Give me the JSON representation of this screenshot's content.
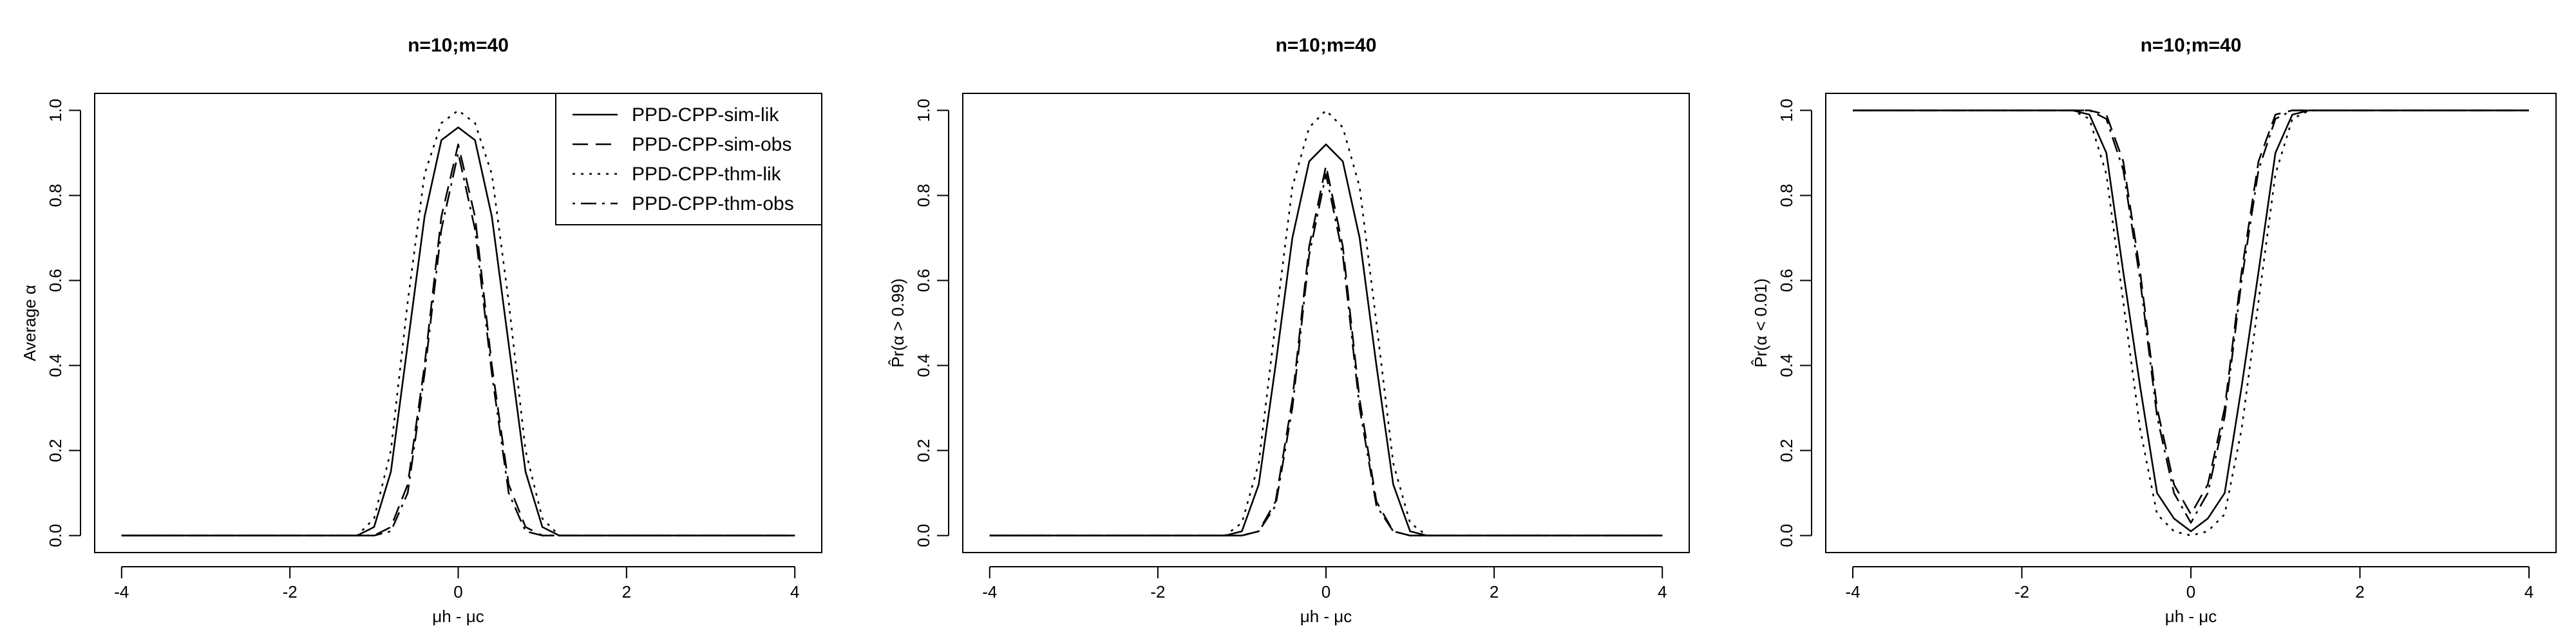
{
  "chart_data": [
    {
      "type": "line",
      "title": "n=10;m=40",
      "xlabel": "μh - μc",
      "ylabel": "Average α",
      "xlim": [
        -4.32,
        4.32
      ],
      "ylim": [
        -0.04,
        1.04
      ],
      "xticks": [
        -4,
        -2,
        0,
        2,
        4
      ],
      "yticks": [
        {
          "value": 0,
          "label": "0.0"
        },
        {
          "value": 0.2,
          "label": "0.2"
        },
        {
          "value": 0.4,
          "label": "0.4"
        },
        {
          "value": 0.6,
          "label": "0.6"
        },
        {
          "value": 0.8,
          "label": "0.8"
        },
        {
          "value": 1,
          "label": "1.0"
        }
      ],
      "legend": "topright",
      "x": [
        -4,
        -3.8,
        -3.6,
        -3.4,
        -3.2,
        -3,
        -2.8,
        -2.6,
        -2.4,
        -2.2,
        -2,
        -1.8,
        -1.6,
        -1.4,
        -1.2,
        -1,
        -0.8,
        -0.6,
        -0.4,
        -0.2,
        0,
        0.2,
        0.4,
        0.6,
        0.8,
        1,
        1.2,
        1.4,
        1.6,
        1.8,
        2,
        2.2,
        2.4,
        2.6,
        2.8,
        3,
        3.2,
        3.4,
        3.6,
        3.8,
        4
      ],
      "series": [
        {
          "name": "PPD-CPP-sim-lik",
          "color": "#000000",
          "linestyle": "solid",
          "values": [
            0,
            0,
            0,
            0,
            0,
            0,
            0,
            0,
            0,
            0,
            0,
            0,
            0,
            0,
            0,
            0.02,
            0.15,
            0.45,
            0.75,
            0.93,
            0.96,
            0.93,
            0.75,
            0.45,
            0.15,
            0.02,
            0,
            0,
            0,
            0,
            0,
            0,
            0,
            0,
            0,
            0,
            0,
            0,
            0,
            0,
            0
          ]
        },
        {
          "name": "PPD-CPP-sim-obs",
          "color": "#000000",
          "linestyle": "dashed",
          "values": [
            0,
            0,
            0,
            0,
            0,
            0,
            0,
            0,
            0,
            0,
            0,
            0,
            0,
            0,
            0,
            0,
            0.02,
            0.12,
            0.4,
            0.75,
            0.92,
            0.75,
            0.4,
            0.12,
            0.02,
            0,
            0,
            0,
            0,
            0,
            0,
            0,
            0,
            0,
            0,
            0,
            0,
            0,
            0,
            0,
            0
          ]
        },
        {
          "name": "PPD-CPP-thm-lik",
          "color": "#000000",
          "linestyle": "dotted",
          "values": [
            0,
            0,
            0,
            0,
            0,
            0,
            0,
            0,
            0,
            0,
            0,
            0,
            0,
            0,
            0,
            0.04,
            0.2,
            0.55,
            0.85,
            0.97,
            1,
            0.97,
            0.85,
            0.55,
            0.2,
            0.04,
            0,
            0,
            0,
            0,
            0,
            0,
            0,
            0,
            0,
            0,
            0,
            0,
            0,
            0,
            0
          ]
        },
        {
          "name": "PPD-CPP-thm-obs",
          "color": "#000000",
          "linestyle": "dotdash",
          "values": [
            0,
            0,
            0,
            0,
            0,
            0,
            0,
            0,
            0,
            0,
            0,
            0,
            0,
            0,
            0,
            0,
            0.01,
            0.1,
            0.38,
            0.72,
            0.9,
            0.72,
            0.38,
            0.1,
            0.01,
            0,
            0,
            0,
            0,
            0,
            0,
            0,
            0,
            0,
            0,
            0,
            0,
            0,
            0,
            0,
            0
          ]
        }
      ]
    },
    {
      "type": "line",
      "title": "n=10;m=40",
      "xlabel": "μh - μc",
      "ylabel": "P̂r(α > 0.99)",
      "xlim": [
        -4.32,
        4.32
      ],
      "ylim": [
        -0.04,
        1.04
      ],
      "xticks": [
        -4,
        -2,
        0,
        2,
        4
      ],
      "yticks": [
        {
          "value": 0,
          "label": "0.0"
        },
        {
          "value": 0.2,
          "label": "0.2"
        },
        {
          "value": 0.4,
          "label": "0.4"
        },
        {
          "value": 0.6,
          "label": "0.6"
        },
        {
          "value": 0.8,
          "label": "0.8"
        },
        {
          "value": 1,
          "label": "1.0"
        }
      ],
      "x": [
        -4,
        -3.8,
        -3.6,
        -3.4,
        -3.2,
        -3,
        -2.8,
        -2.6,
        -2.4,
        -2.2,
        -2,
        -1.8,
        -1.6,
        -1.4,
        -1.2,
        -1,
        -0.8,
        -0.6,
        -0.4,
        -0.2,
        0,
        0.2,
        0.4,
        0.6,
        0.8,
        1,
        1.2,
        1.4,
        1.6,
        1.8,
        2,
        2.2,
        2.4,
        2.6,
        2.8,
        3,
        3.2,
        3.4,
        3.6,
        3.8,
        4
      ],
      "series": [
        {
          "color": "#000000",
          "linestyle": "solid",
          "values": [
            0,
            0,
            0,
            0,
            0,
            0,
            0,
            0,
            0,
            0,
            0,
            0,
            0,
            0,
            0,
            0.01,
            0.12,
            0.4,
            0.7,
            0.88,
            0.92,
            0.88,
            0.7,
            0.4,
            0.12,
            0.01,
            0,
            0,
            0,
            0,
            0,
            0,
            0,
            0,
            0,
            0,
            0,
            0,
            0,
            0,
            0
          ]
        },
        {
          "color": "#000000",
          "linestyle": "dashed",
          "values": [
            0,
            0,
            0,
            0,
            0,
            0,
            0,
            0,
            0,
            0,
            0,
            0,
            0,
            0,
            0,
            0,
            0.01,
            0.08,
            0.32,
            0.68,
            0.87,
            0.68,
            0.32,
            0.08,
            0.01,
            0,
            0,
            0,
            0,
            0,
            0,
            0,
            0,
            0,
            0,
            0,
            0,
            0,
            0,
            0,
            0
          ]
        },
        {
          "color": "#000000",
          "linestyle": "dotted",
          "values": [
            0,
            0,
            0,
            0,
            0,
            0,
            0,
            0,
            0,
            0,
            0,
            0,
            0,
            0,
            0,
            0.03,
            0.17,
            0.5,
            0.82,
            0.96,
            1,
            0.96,
            0.82,
            0.5,
            0.17,
            0.03,
            0,
            0,
            0,
            0,
            0,
            0,
            0,
            0,
            0,
            0,
            0,
            0,
            0,
            0,
            0
          ]
        },
        {
          "color": "#000000",
          "linestyle": "dotdash",
          "values": [
            0,
            0,
            0,
            0,
            0,
            0,
            0,
            0,
            0,
            0,
            0,
            0,
            0,
            0,
            0,
            0,
            0.01,
            0.07,
            0.3,
            0.66,
            0.85,
            0.66,
            0.3,
            0.07,
            0.01,
            0,
            0,
            0,
            0,
            0,
            0,
            0,
            0,
            0,
            0,
            0,
            0,
            0,
            0,
            0,
            0
          ]
        }
      ]
    },
    {
      "type": "line",
      "title": "n=10;m=40",
      "xlabel": "μh - μc",
      "ylabel": "P̂r(α < 0.01)",
      "xlim": [
        -4.32,
        4.32
      ],
      "ylim": [
        -0.04,
        1.04
      ],
      "xticks": [
        -4,
        -2,
        0,
        2,
        4
      ],
      "yticks": [
        {
          "value": 0,
          "label": "0.0"
        },
        {
          "value": 0.2,
          "label": "0.2"
        },
        {
          "value": 0.4,
          "label": "0.4"
        },
        {
          "value": 0.6,
          "label": "0.6"
        },
        {
          "value": 0.8,
          "label": "0.8"
        },
        {
          "value": 1,
          "label": "1.0"
        }
      ],
      "x": [
        -4,
        -3.8,
        -3.6,
        -3.4,
        -3.2,
        -3,
        -2.8,
        -2.6,
        -2.4,
        -2.2,
        -2,
        -1.8,
        -1.6,
        -1.4,
        -1.2,
        -1,
        -0.8,
        -0.6,
        -0.4,
        -0.2,
        0,
        0.2,
        0.4,
        0.6,
        0.8,
        1,
        1.2,
        1.4,
        1.6,
        1.8,
        2,
        2.2,
        2.4,
        2.6,
        2.8,
        3,
        3.2,
        3.4,
        3.6,
        3.8,
        4
      ],
      "series": [
        {
          "color": "#000000",
          "linestyle": "solid",
          "values": [
            1,
            1,
            1,
            1,
            1,
            1,
            1,
            1,
            1,
            1,
            1,
            1,
            1,
            1,
            0.99,
            0.9,
            0.62,
            0.35,
            0.1,
            0.04,
            0.01,
            0.04,
            0.1,
            0.35,
            0.62,
            0.9,
            0.99,
            1,
            1,
            1,
            1,
            1,
            1,
            1,
            1,
            1,
            1,
            1,
            1,
            1,
            1
          ]
        },
        {
          "color": "#000000",
          "linestyle": "dashed",
          "values": [
            1,
            1,
            1,
            1,
            1,
            1,
            1,
            1,
            1,
            1,
            1,
            1,
            1,
            1,
            1,
            0.99,
            0.88,
            0.62,
            0.3,
            0.12,
            0.05,
            0.12,
            0.3,
            0.62,
            0.88,
            0.99,
            1,
            1,
            1,
            1,
            1,
            1,
            1,
            1,
            1,
            1,
            1,
            1,
            1,
            1,
            1
          ]
        },
        {
          "color": "#000000",
          "linestyle": "dotted",
          "values": [
            1,
            1,
            1,
            1,
            1,
            1,
            1,
            1,
            1,
            1,
            1,
            1,
            1,
            1,
            0.98,
            0.85,
            0.55,
            0.25,
            0.05,
            0.01,
            0,
            0.01,
            0.05,
            0.25,
            0.55,
            0.85,
            0.98,
            1,
            1,
            1,
            1,
            1,
            1,
            1,
            1,
            1,
            1,
            1,
            1,
            1,
            1
          ]
        },
        {
          "color": "#000000",
          "linestyle": "dotdash",
          "values": [
            1,
            1,
            1,
            1,
            1,
            1,
            1,
            1,
            1,
            1,
            1,
            1,
            1,
            1,
            1,
            0.98,
            0.86,
            0.6,
            0.28,
            0.1,
            0.03,
            0.1,
            0.28,
            0.6,
            0.86,
            0.98,
            1,
            1,
            1,
            1,
            1,
            1,
            1,
            1,
            1,
            1,
            1,
            1,
            1,
            1,
            1
          ]
        }
      ]
    }
  ]
}
